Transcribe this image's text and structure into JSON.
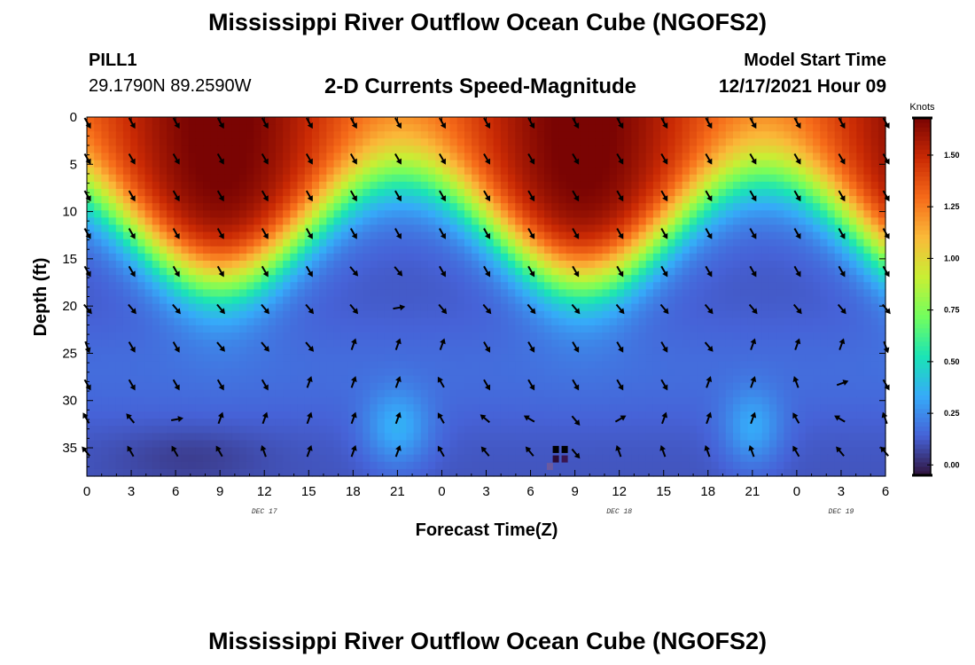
{
  "header": {
    "title": "Mississippi River Outflow Ocean Cube (NGOFS2)",
    "station_id": "PILL1",
    "station_coords": "29.1790N  89.2590W",
    "subtitle": "2-D Currents Speed-Magnitude",
    "model_start_label": "Model Start Time",
    "model_start_value": "12/17/2021 Hour 09"
  },
  "footer": {
    "title": "Mississippi River Outflow Ocean Cube (NGOFS2)"
  },
  "chart_data": {
    "type": "heatmap",
    "title": "2-D Currents Speed-Magnitude",
    "xlabel": "Forecast Time(Z)",
    "ylabel": "Depth (ft)",
    "x_tick_labels": [
      "0",
      "3",
      "6",
      "9",
      "12",
      "15",
      "18",
      "21",
      "0",
      "3",
      "6",
      "9",
      "12",
      "15",
      "18",
      "21",
      "0",
      "3",
      "6"
    ],
    "x_tick_hours": [
      0,
      3,
      6,
      9,
      12,
      15,
      18,
      21,
      24,
      27,
      30,
      33,
      36,
      39,
      42,
      45,
      48,
      51,
      54
    ],
    "xlim_hours": [
      0,
      54
    ],
    "day_labels": [
      {
        "label": "DEC 17",
        "hour": 12
      },
      {
        "label": "DEC 18",
        "hour": 36
      },
      {
        "label": "DEC 19",
        "hour": 51
      }
    ],
    "y_tick_labels": [
      "0",
      "5",
      "10",
      "15",
      "20",
      "25",
      "30",
      "35"
    ],
    "y_ticks": [
      0,
      5,
      10,
      15,
      20,
      25,
      30,
      35
    ],
    "ylim": [
      0,
      38
    ],
    "y_inverted": true,
    "colorbar": {
      "unit": "Knots",
      "range": [
        -0.05,
        1.68
      ],
      "tick_values": [
        0.0,
        0.25,
        0.5,
        0.75,
        1.0,
        1.25,
        1.5
      ],
      "tick_labels": [
        "0.00",
        "0.25",
        "0.50",
        "0.75",
        "1.00",
        "1.25",
        "1.50"
      ],
      "colormap": [
        "#30123b",
        "#4662d7",
        "#36aaf9",
        "#1ae4b6",
        "#72fe5e",
        "#c8ef34",
        "#faba39",
        "#f66b19",
        "#ca2a04",
        "#7a0403"
      ]
    },
    "vector_hours": [
      0,
      3,
      6,
      9,
      12,
      15,
      18,
      21,
      24,
      27,
      30,
      33,
      36,
      39,
      42,
      45,
      48,
      51,
      54
    ],
    "vector_depths": [
      0.5,
      4.3,
      8.2,
      12.2,
      16.2,
      20.2,
      24.2,
      28.2,
      32.0,
      35.5
    ],
    "vector_directions_deg": [
      [
        150,
        150,
        150,
        150,
        150,
        150,
        150,
        150,
        150,
        150,
        150,
        150,
        150,
        150,
        150,
        150,
        150,
        150,
        150
      ],
      [
        150,
        150,
        150,
        150,
        150,
        150,
        150,
        150,
        150,
        150,
        150,
        150,
        150,
        150,
        150,
        150,
        150,
        150,
        150
      ],
      [
        150,
        150,
        150,
        150,
        150,
        150,
        150,
        150,
        150,
        150,
        150,
        150,
        150,
        150,
        150,
        150,
        150,
        150,
        150
      ],
      [
        150,
        150,
        150,
        150,
        150,
        150,
        150,
        150,
        150,
        150,
        150,
        150,
        150,
        150,
        150,
        150,
        150,
        150,
        150
      ],
      [
        150,
        150,
        150,
        150,
        150,
        150,
        140,
        140,
        150,
        150,
        150,
        150,
        150,
        150,
        150,
        150,
        150,
        150,
        150
      ],
      [
        140,
        140,
        140,
        140,
        140,
        140,
        140,
        80,
        140,
        140,
        140,
        140,
        140,
        140,
        140,
        140,
        140,
        140,
        140
      ],
      [
        160,
        150,
        150,
        140,
        140,
        140,
        20,
        20,
        20,
        150,
        150,
        150,
        150,
        150,
        140,
        20,
        20,
        20,
        160
      ],
      [
        150,
        150,
        150,
        150,
        150,
        20,
        20,
        20,
        330,
        150,
        150,
        150,
        150,
        150,
        20,
        20,
        340,
        70,
        150
      ],
      [
        330,
        320,
        80,
        20,
        20,
        20,
        20,
        20,
        330,
        310,
        300,
        140,
        60,
        20,
        20,
        20,
        330,
        300,
        340
      ],
      [
        320,
        330,
        330,
        330,
        340,
        20,
        20,
        20,
        330,
        320,
        320,
        140,
        340,
        340,
        340,
        340,
        330,
        320,
        320
      ]
    ],
    "speed_field_note": "two high-speed surface lobes (~1.6 kn) centred near hours 9 and 33, surface minima near hours 21 and 48, deep water ~0.1 kn"
  }
}
